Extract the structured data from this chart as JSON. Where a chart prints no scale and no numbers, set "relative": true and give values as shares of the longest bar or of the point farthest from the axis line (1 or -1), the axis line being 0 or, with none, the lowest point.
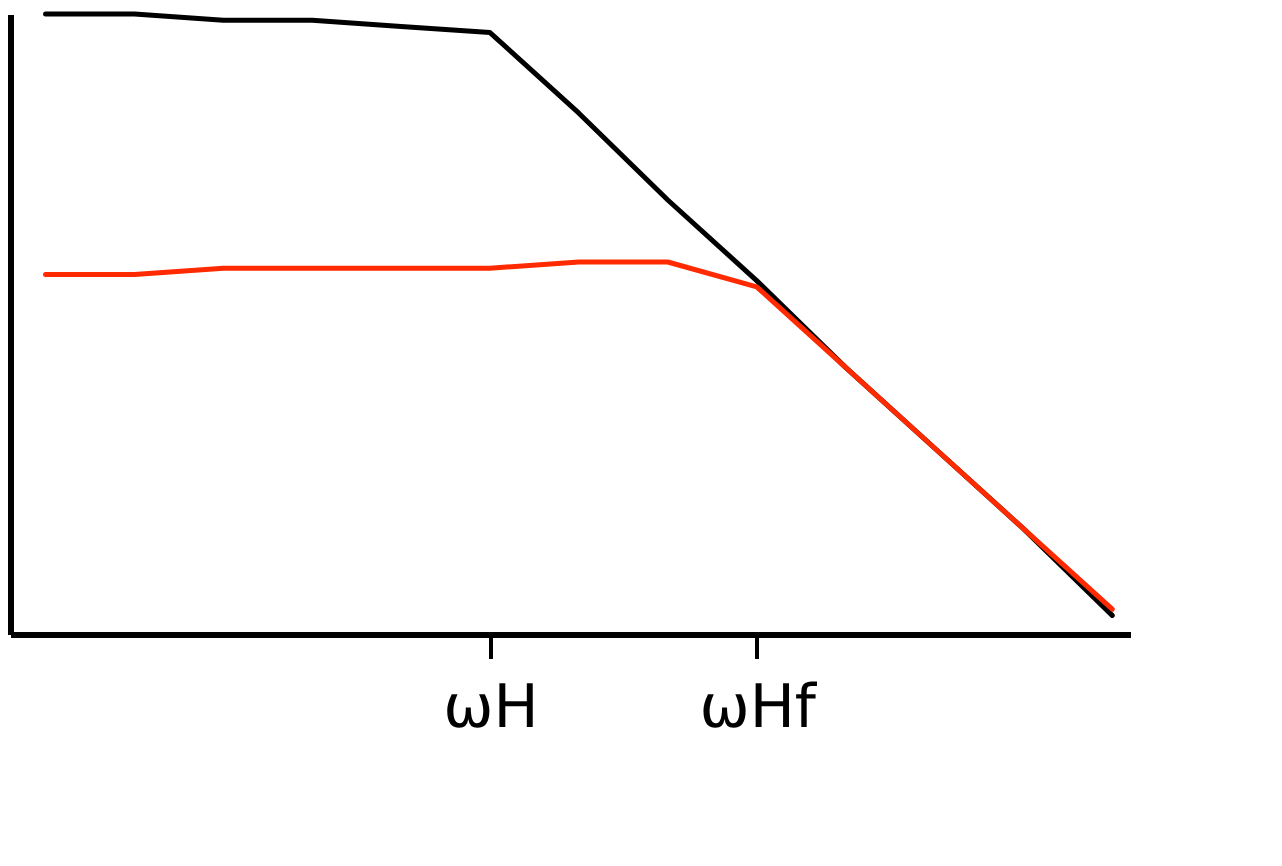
{
  "chart_data": {
    "type": "line",
    "relative": true,
    "categories": [
      null,
      null,
      null,
      null,
      null,
      "ωH",
      null,
      null,
      "ωHf",
      null,
      null,
      null,
      null
    ],
    "series": [
      {
        "color": "#000000",
        "values": [
          1,
          1,
          0.99,
          0.99,
          0.98,
          0.97,
          0.84,
          0.7,
          0.57,
          0.43,
          0.3,
          0.17,
          0.03
        ]
      },
      {
        "color": "#ff2a00",
        "values": [
          0.58,
          0.58,
          0.59,
          0.59,
          0.59,
          0.59,
          0.6,
          0.6,
          0.56,
          0.43,
          0.3,
          0.17,
          0.04
        ]
      }
    ],
    "grid": false,
    "marker": "none",
    "line_style": "solid",
    "tick_labels": "x"
  }
}
